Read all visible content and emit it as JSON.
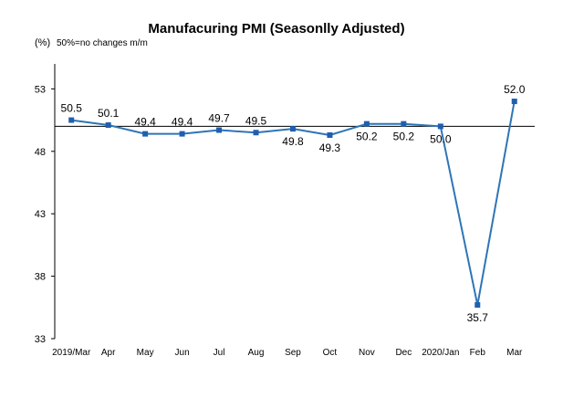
{
  "chart_data": {
    "type": "line",
    "title": "Manufacuring PMI (Seasonlly Adjusted)",
    "ylabel": "(%)",
    "note": "50%=no changes  m/m",
    "categories": [
      "2019/Mar",
      "Apr",
      "May",
      "Jun",
      "Jul",
      "Aug",
      "Sep",
      "Oct",
      "Nov",
      "Dec",
      "2020/Jan",
      "Feb",
      "Mar"
    ],
    "series": [
      {
        "values": [
          50.5,
          50.1,
          49.4,
          49.4,
          49.7,
          49.5,
          49.8,
          49.3,
          50.2,
          50.2,
          50.0,
          35.7,
          52.0
        ],
        "labels": [
          "50.5",
          "50.1",
          "49.4",
          "49.4",
          "49.7",
          "49.5",
          "49.8",
          "49.3",
          "50.2",
          "50.2",
          "50.0",
          "35.7",
          "52.0"
        ]
      }
    ],
    "yticks": [
      {
        "value": 33,
        "label": "33"
      },
      {
        "value": 38,
        "label": "38"
      },
      {
        "value": 43,
        "label": "43"
      },
      {
        "value": 48,
        "label": "48"
      },
      {
        "value": 53,
        "label": "53"
      }
    ],
    "ylim": [
      33,
      55
    ],
    "baseline": 50,
    "grid": false,
    "legend": "none",
    "colors": {
      "line": "#2E75B6",
      "marker": "#1F5FAE",
      "axis": "#000000"
    }
  }
}
